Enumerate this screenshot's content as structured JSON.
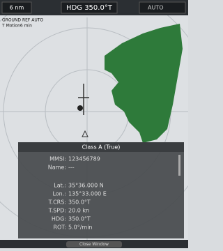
{
  "header": {
    "range": "6 nm",
    "heading": "HDG 350.0°T",
    "mode": "AUTO"
  },
  "status": {
    "line1": "GROUND REF AUTO",
    "line2": "T Motion6 min"
  },
  "panel": {
    "title": "Class A (True)",
    "rows": [
      [
        "MMSI:",
        "123456789"
      ],
      [
        "Name:",
        "---"
      ],
      [
        "Lat.:",
        "35°36.000 N"
      ],
      [
        "Lon.:",
        "135°33.000 E"
      ],
      [
        "T.CRS:",
        "350.0°T"
      ],
      [
        "T.SPD:",
        "20.0 kn"
      ],
      [
        "HDG:",
        "350.0°T"
      ],
      [
        "ROT:",
        "5.0°/min"
      ]
    ]
  },
  "footer": {
    "button": "Close Window"
  }
}
